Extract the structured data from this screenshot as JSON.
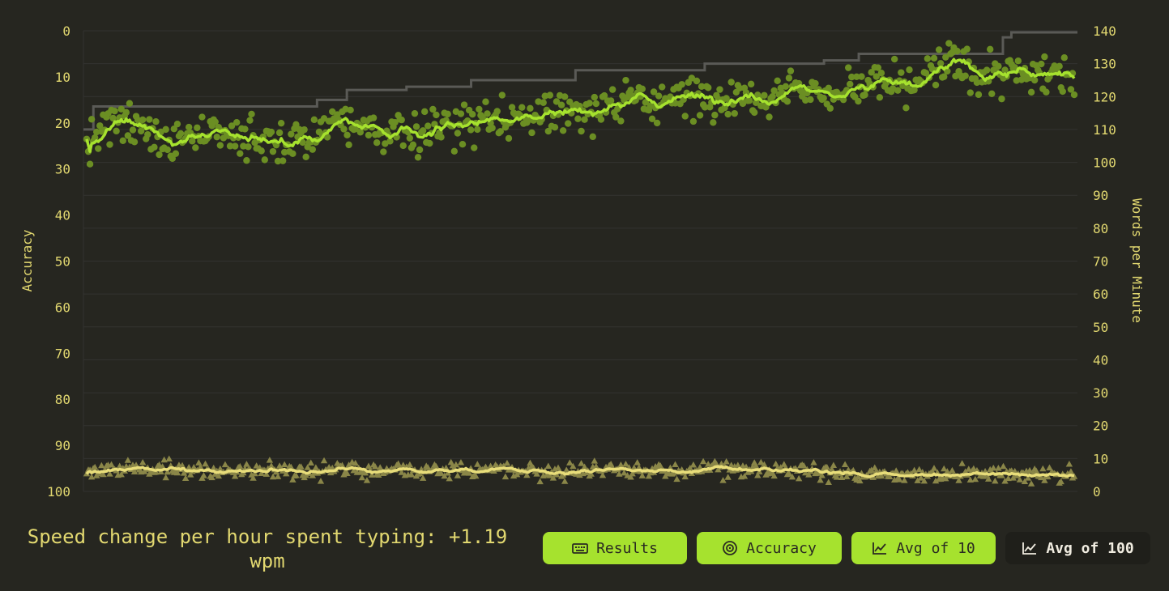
{
  "chart_data": {
    "type": "scatter",
    "left_axis": {
      "label": "Accuracy",
      "ticks": [
        "0",
        "10",
        "20",
        "30",
        "40",
        "50",
        "60",
        "70",
        "80",
        "90",
        "100"
      ],
      "range": [
        0,
        100
      ],
      "reversed": true
    },
    "right_axis": {
      "label": "Words per Minute",
      "ticks": [
        "140",
        "130",
        "120",
        "110",
        "100",
        "90",
        "80",
        "70",
        "60",
        "50",
        "40",
        "30",
        "20",
        "10",
        "0"
      ],
      "range": [
        0,
        140
      ]
    },
    "grid": true,
    "series": [
      {
        "kind": "wpm_points",
        "color": "#6b8e23"
      },
      {
        "kind": "wpm_avg",
        "color": "#a6e22e"
      },
      {
        "kind": "personal_best_wpm",
        "color": "#5a5a56",
        "steps": [
          {
            "x_frac": 0.0,
            "wpm": 110
          },
          {
            "x_frac": 0.01,
            "wpm": 117
          },
          {
            "x_frac": 0.235,
            "wpm": 119
          },
          {
            "x_frac": 0.265,
            "wpm": 122
          },
          {
            "x_frac": 0.325,
            "wpm": 123
          },
          {
            "x_frac": 0.39,
            "wpm": 125
          },
          {
            "x_frac": 0.495,
            "wpm": 128
          },
          {
            "x_frac": 0.625,
            "wpm": 130
          },
          {
            "x_frac": 0.745,
            "wpm": 131
          },
          {
            "x_frac": 0.78,
            "wpm": 133
          },
          {
            "x_frac": 0.925,
            "wpm": 138
          },
          {
            "x_frac": 0.9335,
            "wpm": 139.5
          },
          {
            "x_frac": 1.0,
            "wpm": 139.5
          }
        ]
      },
      {
        "kind": "accuracy_points",
        "color": "#8a8648"
      },
      {
        "kind": "accuracy_avg",
        "color": "#e8dd7a"
      }
    ]
  },
  "footer": {
    "speed_change": "Speed change per hour spent typing: +1.19 wpm"
  },
  "buttons": [
    {
      "label": "Results",
      "icon": "keyboard-icon",
      "active": true
    },
    {
      "label": "Accuracy",
      "icon": "target-icon",
      "active": true
    },
    {
      "label": "Avg of 10",
      "icon": "chart-line-icon",
      "active": true
    },
    {
      "label": "Avg of 100",
      "icon": "chart-line-icon",
      "active": false
    }
  ]
}
